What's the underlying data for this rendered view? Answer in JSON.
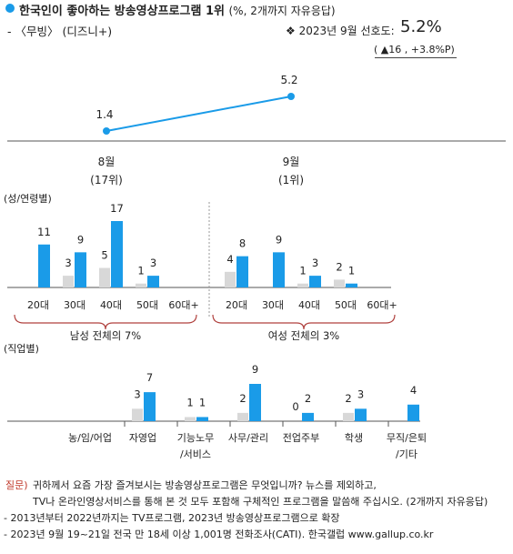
{
  "title": {
    "main": "한국인이 좋아하는 방송영상프로그램 1위",
    "unit": "(%, 2개까지 자유응답)"
  },
  "subtitle": "- 〈무빙〉 (디즈니+)",
  "preference": {
    "label": "❖  2023년  9월  선호도:",
    "value": "5.2%",
    "change": "( ▲16 , +3.8%P)"
  },
  "colors": {
    "current": "#1a9be8",
    "previous": "#d8d8d8",
    "brace": "#b0413e",
    "axis": "#555555"
  },
  "chart_data": [
    {
      "type": "line",
      "categories": [
        "8월",
        "9월"
      ],
      "category_ranks": [
        "(17위)",
        "(1위)"
      ],
      "values": [
        1.4,
        5.2
      ]
    },
    {
      "type": "bar",
      "title": "(성/연령별)",
      "groups": [
        {
          "name": "남성 전체의 7%",
          "categories": [
            "20대",
            "30대",
            "40대",
            "50대",
            "60대+"
          ],
          "series": [
            {
              "values": [
                null,
                3,
                5,
                1,
                null
              ]
            },
            {
              "values": [
                11,
                9,
                17,
                3,
                null
              ]
            }
          ]
        },
        {
          "name": "여성 전체의 3%",
          "categories": [
            "20대",
            "30대",
            "40대",
            "50대",
            "60대+"
          ],
          "series": [
            {
              "values": [
                4,
                null,
                1,
                2,
                null
              ]
            },
            {
              "values": [
                8,
                9,
                3,
                1,
                null
              ]
            }
          ]
        }
      ]
    },
    {
      "type": "bar",
      "title": "(직업별)",
      "categories": [
        "농/임/어업",
        "자영업",
        "기능노무/서비스",
        "사무/관리",
        "전업주부",
        "학생",
        "무직/은퇴/기타"
      ],
      "category_lines": [
        [
          "농/임/어업"
        ],
        [
          "자영업"
        ],
        [
          "기능노무",
          "/서비스"
        ],
        [
          "사무/관리"
        ],
        [
          "전업주부"
        ],
        [
          "학생"
        ],
        [
          "무직/은퇴",
          "/기타"
        ]
      ],
      "series": [
        {
          "values": [
            null,
            3,
            1,
            2,
            0,
            2,
            null
          ]
        },
        {
          "values": [
            null,
            7,
            1,
            9,
            2,
            3,
            4
          ]
        }
      ]
    }
  ],
  "question": {
    "mark": "질문)",
    "lines": [
      "귀하께서 요즘 가장 즐겨보시는 방송영상프로그램은 무엇입니까? 뉴스를 제외하고,",
      "TV나 온라인영상서비스를 통해 본 것 모두 포함해 구체적인 프로그램을 말씀해 주십시오. (2개까지 자유응답)"
    ]
  },
  "notes": [
    "- 2013년부터 2022년까지는 TV프로그램, 2023년 방송영상프로그램으로 확장",
    "- 2023년  9월  19~21일  전국  만  18세  이상  1,001명  전화조사(CATI).  한국갤럽  www.gallup.co.kr"
  ]
}
